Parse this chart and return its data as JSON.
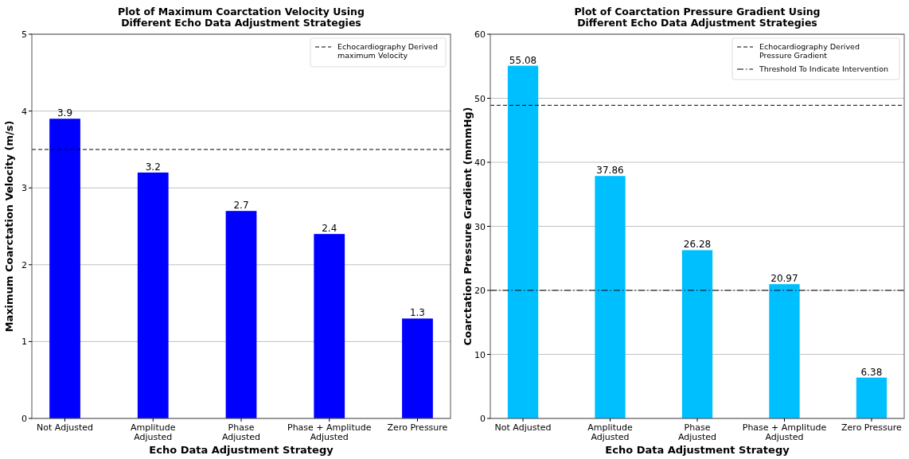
{
  "chart_data": [
    {
      "type": "bar",
      "title": "Plot of Maximum Coarctation Velocity Using\nDifferent Echo Data Adjustment Strategies",
      "xlabel": "Echo Data Adjustment Strategy",
      "ylabel": "Maximum Coarctation Velocity (m/s)",
      "categories": [
        "Not Adjusted",
        "Amplitude\nAdjusted",
        "Phase\nAdjusted",
        "Phase + Amplitude\nAdjusted",
        "Zero Pressure"
      ],
      "values": [
        3.9,
        3.2,
        2.7,
        2.4,
        1.3
      ],
      "color": "#0000ff",
      "ylim": [
        0,
        5
      ],
      "yticks": [
        0,
        1,
        2,
        3,
        4,
        5
      ],
      "grid": "y",
      "data_labels": true,
      "legend": "top right",
      "ref_lines": [
        {
          "axis": "y",
          "value": 3.5,
          "label": "Echocardiography Derived\nmaximum Velocity",
          "color": "#000000",
          "line_style": "dashed"
        }
      ]
    },
    {
      "type": "bar",
      "title": "Plot of Coarctation Pressure Gradient Using\nDifferent Echo Data Adjustment Strategies",
      "xlabel": "Echo Data Adjustment Strategy",
      "ylabel": "Coarctation Pressure Gradient (mmmHg)",
      "categories": [
        "Not Adjusted",
        "Amplitude\nAdjusted",
        "Phase\nAdjusted",
        "Phase + Amplitude\nAdjusted",
        "Zero Pressure"
      ],
      "values": [
        55.08,
        37.86,
        26.28,
        20.97,
        6.38
      ],
      "color": "#00bfff",
      "ylim": [
        0,
        60
      ],
      "yticks": [
        0,
        10,
        20,
        30,
        40,
        50,
        60
      ],
      "grid": "y",
      "data_labels": true,
      "legend": "top right",
      "ref_lines": [
        {
          "axis": "y",
          "value": 48.9,
          "label": "Echocardiography Derived\nPressure Gradient",
          "color": "#000000",
          "line_style": "dashed"
        },
        {
          "axis": "y",
          "value": 20,
          "label": "Threshold To Indicate Intervention",
          "color": "#000000",
          "line_style": "dashdot"
        }
      ]
    }
  ]
}
